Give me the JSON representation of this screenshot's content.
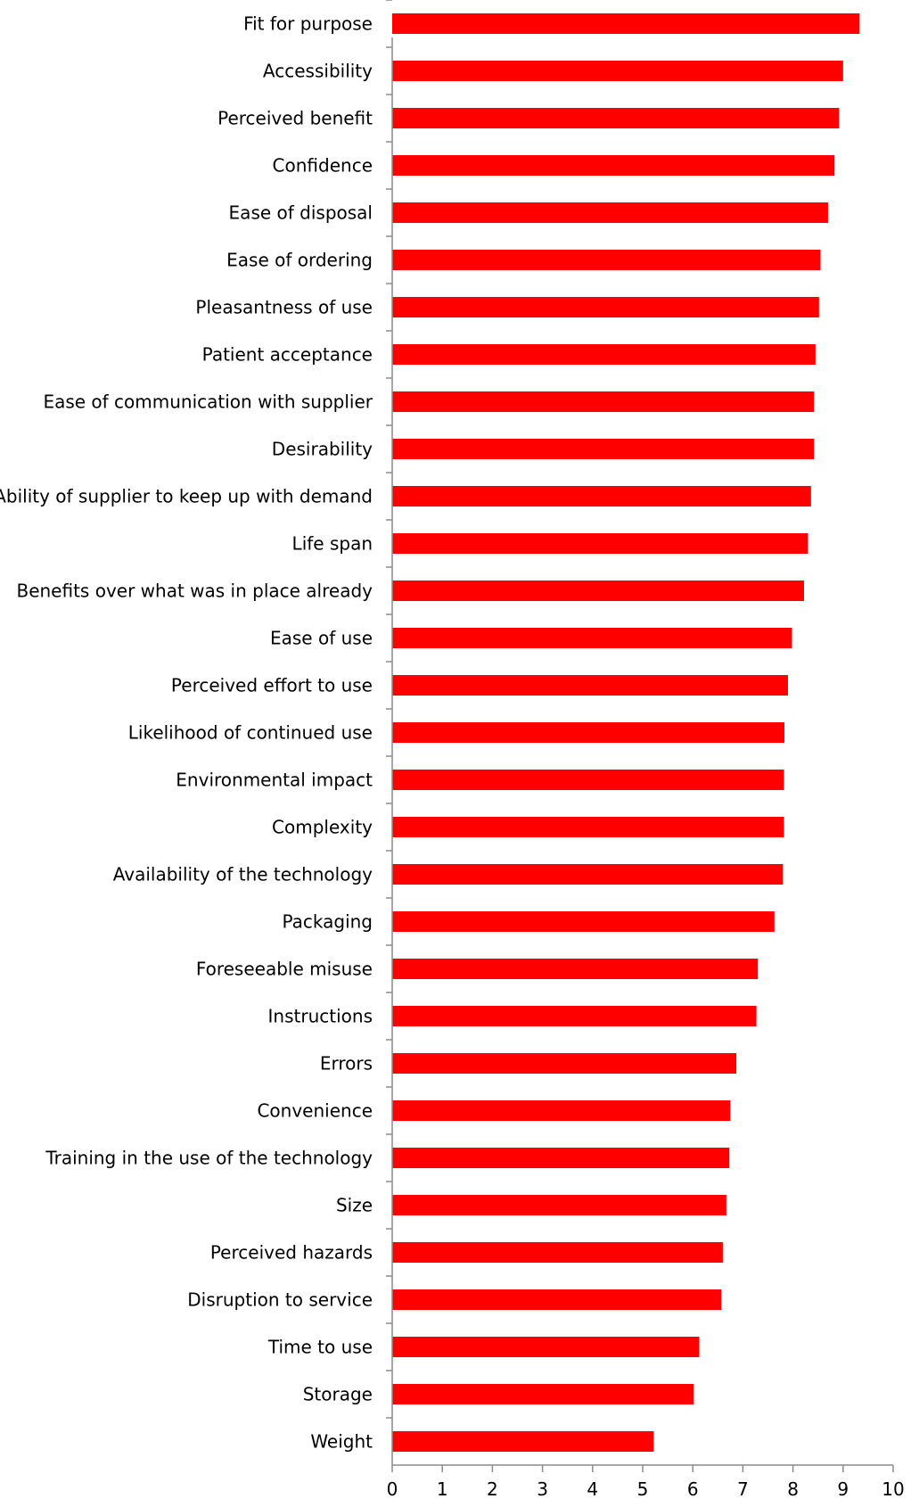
{
  "chart_data": {
    "type": "bar",
    "orientation": "horizontal",
    "title": "",
    "xlabel": "",
    "ylabel": "",
    "xlim": [
      0,
      10
    ],
    "xticks": [
      0,
      1,
      2,
      3,
      4,
      5,
      6,
      7,
      8,
      9,
      10
    ],
    "grid": false,
    "legend": "none",
    "bar_color": "#ff0000",
    "categories": [
      "Fit for purpose",
      "Accessibility",
      "Perceived benefit",
      "Confidence",
      "Ease of disposal",
      "Ease of ordering",
      "Pleasantness of use",
      "Patient acceptance",
      "Ease of communication with supplier",
      "Desirability",
      "Ability of supplier to keep up with demand",
      "Life span",
      "Benefits over what was in place already",
      "Ease of use",
      "Perceived effort to use",
      "Likelihood of continued use",
      "Environmental impact",
      "Complexity",
      "Availability of the technology",
      "Packaging",
      "Foreseeable misuse",
      "Instructions",
      "Errors",
      "Convenience",
      "Training in the use of the technology",
      "Size",
      "Perceived hazards",
      "Disruption to service",
      "Time to use",
      "Storage",
      "Weight"
    ],
    "values": [
      9.33,
      9.0,
      8.92,
      8.83,
      8.7,
      8.55,
      8.52,
      8.45,
      8.42,
      8.42,
      8.36,
      8.3,
      8.22,
      7.98,
      7.9,
      7.83,
      7.82,
      7.82,
      7.8,
      7.63,
      7.3,
      7.27,
      6.87,
      6.75,
      6.73,
      6.67,
      6.6,
      6.57,
      6.13,
      6.02,
      5.22
    ]
  }
}
